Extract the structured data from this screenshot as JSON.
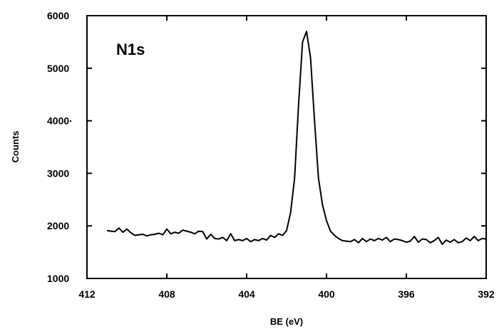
{
  "chart_data": {
    "type": "line",
    "title": "",
    "annotation": "N1s",
    "xlabel": "BE (eV)",
    "ylabel": "Counts",
    "x_reversed": true,
    "xlim": [
      412,
      392
    ],
    "ylim": [
      1000,
      6000
    ],
    "x_ticks": [
      412,
      408,
      404,
      400,
      396,
      392
    ],
    "x_tick_labels": [
      "412",
      "408",
      "404",
      "400",
      "396",
      "392"
    ],
    "y_ticks": [
      1000,
      2000,
      3000,
      4000,
      5000,
      6000
    ],
    "y_tick_labels": [
      "1000",
      "2000",
      "3000",
      "4000·",
      "5000",
      "6000"
    ],
    "grid": false,
    "series": [
      {
        "name": "",
        "color": "#000000",
        "x": [
          411.0,
          410.8,
          410.6,
          410.4,
          410.2,
          410.0,
          409.8,
          409.6,
          409.4,
          409.2,
          409.0,
          408.8,
          408.6,
          408.4,
          408.2,
          408.0,
          407.8,
          407.6,
          407.4,
          407.2,
          407.0,
          406.8,
          406.6,
          406.4,
          406.2,
          406.0,
          405.8,
          405.6,
          405.4,
          405.2,
          405.0,
          404.8,
          404.6,
          404.4,
          404.2,
          404.0,
          403.8,
          403.6,
          403.4,
          403.2,
          403.0,
          402.8,
          402.6,
          402.4,
          402.2,
          402.0,
          401.8,
          401.6,
          401.4,
          401.2,
          401.0,
          400.8,
          400.6,
          400.4,
          400.2,
          400.0,
          399.8,
          399.6,
          399.4,
          399.2,
          399.0,
          398.8,
          398.6,
          398.4,
          398.2,
          398.0,
          397.8,
          397.6,
          397.4,
          397.2,
          397.0,
          396.8,
          396.6,
          396.4,
          396.2,
          396.0,
          395.8,
          395.6,
          395.4,
          395.2,
          395.0,
          394.8,
          394.6,
          394.4,
          394.2,
          394.0,
          393.8,
          393.6,
          393.4,
          393.2,
          393.0,
          392.8,
          392.6,
          392.4,
          392.2,
          392.0
        ],
        "y": [
          1910,
          1900,
          1890,
          1960,
          1880,
          1940,
          1870,
          1820,
          1830,
          1840,
          1810,
          1830,
          1840,
          1860,
          1830,
          1940,
          1850,
          1880,
          1860,
          1920,
          1900,
          1880,
          1850,
          1900,
          1890,
          1750,
          1840,
          1760,
          1750,
          1780,
          1720,
          1850,
          1720,
          1740,
          1720,
          1760,
          1700,
          1740,
          1720,
          1760,
          1730,
          1820,
          1780,
          1850,
          1820,
          1910,
          2250,
          2900,
          4300,
          5500,
          5700,
          5200,
          4000,
          2900,
          2400,
          2100,
          1900,
          1820,
          1760,
          1720,
          1710,
          1700,
          1740,
          1680,
          1760,
          1700,
          1750,
          1720,
          1760,
          1730,
          1780,
          1700,
          1750,
          1740,
          1720,
          1690,
          1710,
          1800,
          1690,
          1750,
          1740,
          1680,
          1720,
          1780,
          1650,
          1730,
          1690,
          1740,
          1680,
          1700,
          1770,
          1720,
          1800,
          1720,
          1760,
          1750
        ]
      }
    ]
  }
}
